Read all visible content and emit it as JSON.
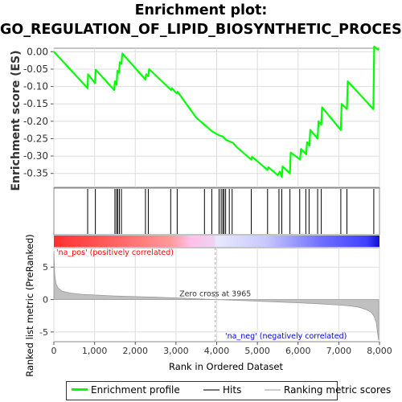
{
  "chart_data": [
    {
      "type": "line",
      "title": "Enrichment plot:",
      "subtitle": "GO_REGULATION_OF_LIPID_BIOSYNTHETIC_PROCESS",
      "ylabel": "Enrichment score (ES)",
      "xlim": [
        0,
        8000
      ],
      "ylim": [
        -0.39,
        0.01
      ],
      "yticks": [
        "0.00",
        "-0.05",
        "-0.10",
        "-0.15",
        "-0.20",
        "-0.25",
        "-0.30",
        "-0.35"
      ],
      "ytick_values": [
        0,
        -0.05,
        -0.1,
        -0.15,
        -0.2,
        -0.25,
        -0.3,
        -0.35
      ],
      "grid": true,
      "series": [
        {
          "name": "Enrichment profile",
          "color": "#00ff00",
          "x": [
            0,
            830,
            840,
            1010,
            1030,
            1480,
            1500,
            1540,
            1560,
            1600,
            1620,
            1660,
            1680,
            2250,
            2270,
            2320,
            2340,
            2880,
            2900,
            3020,
            3040,
            3500,
            3700,
            3900,
            4050,
            4100,
            4150,
            4200,
            4250,
            4300,
            4400,
            4500,
            4850,
            4870,
            5250,
            5270,
            5500,
            5550,
            5600,
            5620,
            5800,
            5820,
            6050,
            6070,
            6200,
            6220,
            6280,
            6300,
            6480,
            6500,
            6570,
            6590,
            7050,
            7070,
            7200,
            7220,
            7850,
            7870,
            7980
          ],
          "y": [
            0,
            -0.105,
            -0.065,
            -0.09,
            -0.052,
            -0.11,
            -0.085,
            -0.095,
            -0.055,
            -0.06,
            -0.03,
            -0.035,
            -0.005,
            -0.08,
            -0.065,
            -0.07,
            -0.05,
            -0.11,
            -0.105,
            -0.12,
            -0.115,
            -0.19,
            -0.21,
            -0.23,
            -0.24,
            -0.242,
            -0.244,
            -0.25,
            -0.255,
            -0.257,
            -0.262,
            -0.275,
            -0.31,
            -0.302,
            -0.34,
            -0.332,
            -0.355,
            -0.345,
            -0.36,
            -0.33,
            -0.35,
            -0.29,
            -0.31,
            -0.28,
            -0.295,
            -0.26,
            -0.27,
            -0.225,
            -0.25,
            -0.2,
            -0.21,
            -0.16,
            -0.225,
            -0.15,
            -0.165,
            -0.085,
            -0.165,
            0.015,
            0.005
          ]
        }
      ]
    },
    {
      "type": "barcode",
      "series_name": "Hits",
      "x": [
        830,
        1020,
        1500,
        1540,
        1570,
        1610,
        1660,
        2250,
        2320,
        2870,
        3030,
        3700,
        3880,
        4060,
        4110,
        4150,
        4180,
        4220,
        4310,
        4380,
        4850,
        5250,
        5530,
        5600,
        5800,
        6040,
        6190,
        6270,
        6480,
        6570,
        7050,
        7200,
        7860
      ]
    },
    {
      "type": "area",
      "series_name": "Ranking metric scores",
      "ylabel": "Ranked list metric (PreRanked)",
      "xlabel": "Rank in Ordered Dataset",
      "xlim": [
        0,
        8000
      ],
      "ylim": [
        -6.5,
        8
      ],
      "yticks": [
        "5",
        "0",
        "-5"
      ],
      "ytick_values": [
        5,
        0,
        -5
      ],
      "xticks": [
        "0",
        "1,000",
        "2,000",
        "3,000",
        "4,000",
        "5,000",
        "6,000",
        "7,000",
        "8,000"
      ],
      "xtick_values": [
        0,
        1000,
        2000,
        3000,
        4000,
        5000,
        6000,
        7000,
        8000
      ],
      "x": [
        0,
        20,
        50,
        100,
        200,
        400,
        700,
        1000,
        1500,
        2000,
        2500,
        3000,
        3500,
        3965,
        4500,
        5000,
        5500,
        6000,
        6500,
        7000,
        7300,
        7500,
        7700,
        7800,
        7870,
        7920,
        7950,
        7980
      ],
      "values": [
        7.5,
        4.0,
        2.5,
        1.8,
        1.3,
        1.0,
        0.8,
        0.7,
        0.55,
        0.45,
        0.35,
        0.25,
        0.12,
        0.0,
        -0.12,
        -0.25,
        -0.38,
        -0.5,
        -0.65,
        -0.85,
        -1.0,
        -1.2,
        -1.6,
        -2.0,
        -2.6,
        -3.5,
        -5.0,
        -6.3
      ],
      "zero_cross_label": "Zero cross at 3965",
      "zero_cross_x": 3965,
      "pos_label": "'na_pos' (positively correlated)",
      "neg_label": "'na_neg' (negatively correlated)"
    }
  ],
  "colors": {
    "profile": "#00ff00",
    "hits": "#000000",
    "metric_fill": "#c0c0c0",
    "pos_text": "#ff0000",
    "neg_text": "#0000ff"
  },
  "legend": {
    "items": [
      {
        "label": "Enrichment profile",
        "color": "#00ff00"
      },
      {
        "label": "Hits",
        "color": "#777777"
      },
      {
        "label": "Ranking metric scores",
        "color": "#cccccc"
      }
    ]
  }
}
